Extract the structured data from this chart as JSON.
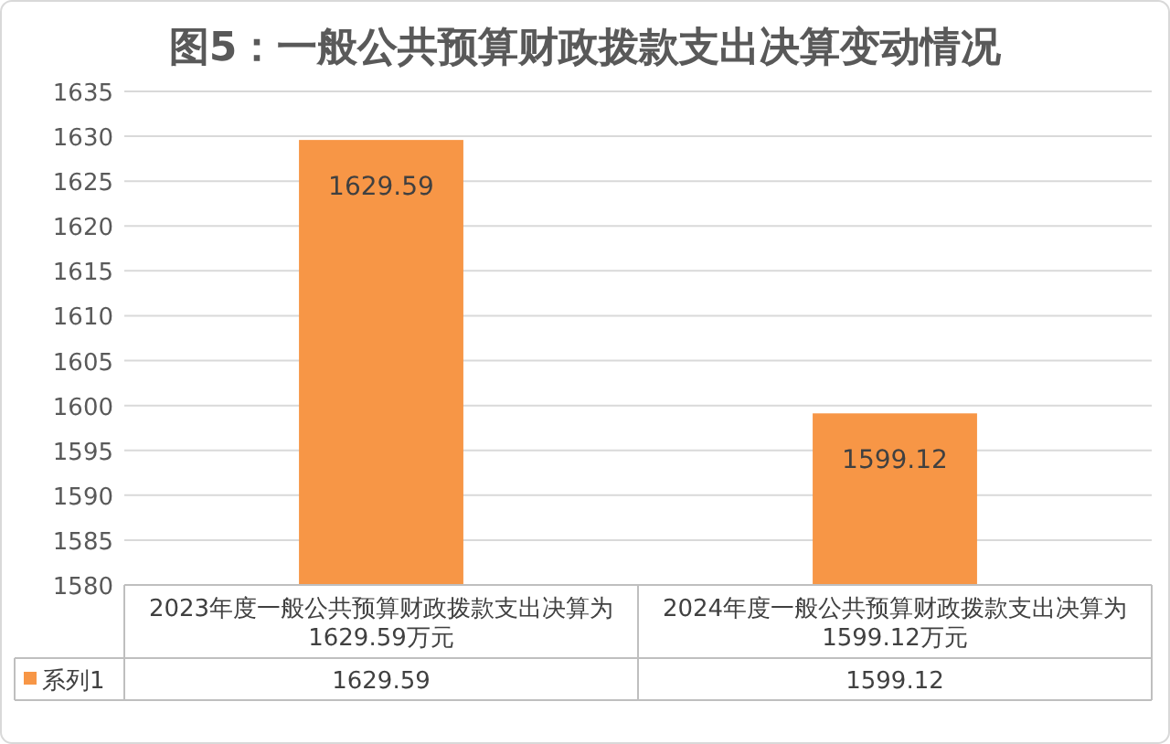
{
  "chart_data": {
    "type": "bar",
    "title": "图5：一般公共预算财政拨款支出决算变动情况",
    "categories": [
      "2023年度一般公共预算财政拨款支出决算为1629.59万元",
      "2024年度一般公共预算财政拨款支出决算为1599.12万元"
    ],
    "series": [
      {
        "name": "系列1",
        "color": "#f79646",
        "values": [
          1629.59,
          1599.12
        ]
      }
    ],
    "ylim": [
      1580,
      1635
    ],
    "yticks": [
      1580,
      1585,
      1590,
      1595,
      1600,
      1605,
      1610,
      1615,
      1620,
      1625,
      1630,
      1635
    ],
    "annotations": [
      "1629.59",
      "1599.12"
    ],
    "grid": "y",
    "data_labels": true,
    "legend": "bottom"
  }
}
